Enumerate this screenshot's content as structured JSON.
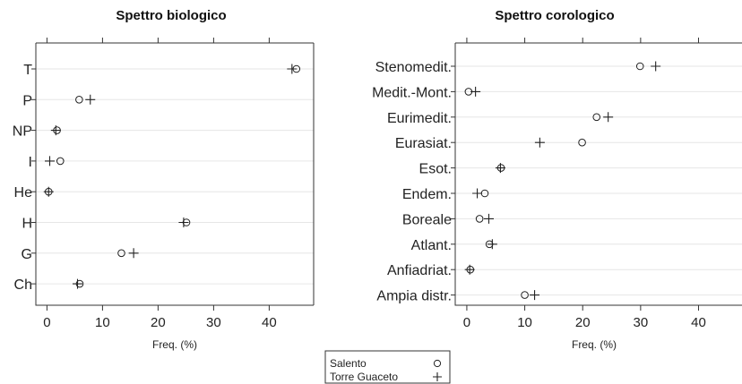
{
  "chart_data": [
    {
      "type": "scatter",
      "title": "Spettro biologico",
      "xlabel": "Freq. (%)",
      "xlim": [
        -2,
        48
      ],
      "xticks": [
        0,
        10,
        20,
        30,
        40
      ],
      "grid": true,
      "categories": [
        "T",
        "P",
        "NP",
        "I",
        "He",
        "H",
        "G",
        "Ch"
      ],
      "series": [
        {
          "name": "Salento",
          "marker": "circle",
          "values": [
            44.9,
            5.8,
            1.8,
            2.4,
            0.3,
            25.1,
            13.4,
            5.9
          ]
        },
        {
          "name": "Torre Guaceto",
          "marker": "plus",
          "values": [
            44.1,
            7.8,
            1.6,
            0.5,
            0.3,
            24.6,
            15.6,
            5.5
          ]
        }
      ]
    },
    {
      "type": "scatter",
      "title": "Spettro corologico",
      "xlabel": "Freq. (%)",
      "xlim": [
        -2,
        47.5
      ],
      "xticks": [
        0,
        10,
        20,
        30,
        40
      ],
      "grid": true,
      "categories": [
        "Stenomedit.",
        "Medit.-Mont.",
        "Eurimedit.",
        "Eurasiat.",
        "Esot.",
        "Endem.",
        "Boreale",
        "Atlant.",
        "Anfiadriat.",
        "Ampia distr."
      ],
      "series": [
        {
          "name": "Salento",
          "marker": "circle",
          "values": [
            29.9,
            0.3,
            22.4,
            19.9,
            5.9,
            3.1,
            2.2,
            3.9,
            0.6,
            10.0
          ]
        },
        {
          "name": "Torre Guaceto",
          "marker": "plus",
          "values": [
            32.6,
            1.5,
            24.4,
            12.6,
            5.8,
            1.8,
            3.8,
            4.4,
            0.5,
            11.7
          ]
        }
      ]
    }
  ],
  "legend": {
    "placement": "bottom-center",
    "entries": [
      {
        "label": "Salento",
        "marker": "circle"
      },
      {
        "label": "Torre Guaceto",
        "marker": "plus"
      }
    ]
  }
}
